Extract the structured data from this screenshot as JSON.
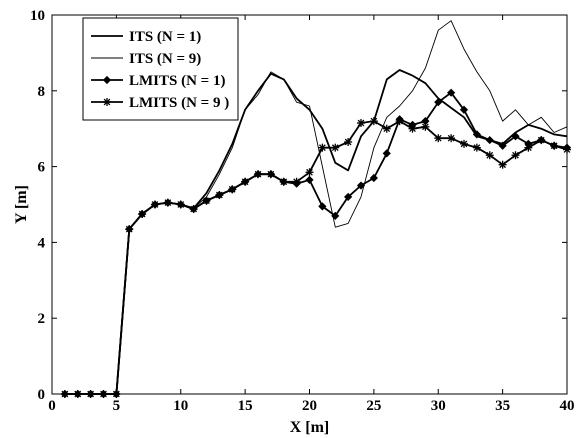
{
  "chart_data": {
    "type": "line",
    "title": "",
    "xlabel": "X [m]",
    "ylabel": "Y [m]",
    "xlim": [
      0,
      40
    ],
    "ylim": [
      0,
      10
    ],
    "xticks": [
      0,
      5,
      10,
      15,
      20,
      25,
      30,
      35,
      40
    ],
    "yticks": [
      0,
      2,
      4,
      6,
      8,
      10
    ],
    "grid": false,
    "legend_position": "top-left",
    "series": [
      {
        "name": "ITS (N = 1)",
        "style": "thick",
        "marker": "none",
        "x": [
          1,
          2,
          3,
          4,
          5,
          6,
          7,
          8,
          9,
          10,
          11,
          12,
          13,
          14,
          15,
          16,
          17,
          18,
          19,
          20,
          21,
          22,
          23,
          24,
          25,
          26,
          27,
          28,
          29,
          30,
          31,
          32,
          33,
          34,
          35,
          36,
          37,
          38,
          39,
          40
        ],
        "y": [
          0,
          0,
          0,
          0,
          0,
          4.35,
          4.75,
          5.0,
          5.05,
          5.0,
          4.9,
          5.3,
          5.9,
          6.6,
          7.5,
          8.0,
          8.45,
          8.3,
          7.8,
          7.5,
          7.0,
          6.1,
          5.9,
          6.8,
          7.2,
          8.3,
          8.55,
          8.4,
          8.2,
          7.8,
          7.55,
          7.3,
          6.8,
          6.7,
          6.6,
          6.9,
          7.1,
          7.0,
          6.85,
          6.8
        ]
      },
      {
        "name": "ITS (N = 9)",
        "style": "thin",
        "marker": "none",
        "x": [
          1,
          2,
          3,
          4,
          5,
          6,
          7,
          8,
          9,
          10,
          11,
          12,
          13,
          14,
          15,
          16,
          17,
          18,
          19,
          20,
          21,
          22,
          23,
          24,
          25,
          26,
          27,
          28,
          29,
          30,
          31,
          32,
          33,
          34,
          35,
          36,
          37,
          38,
          39,
          40
        ],
        "y": [
          0,
          0,
          0,
          0,
          0,
          4.35,
          4.75,
          5.0,
          5.05,
          5.0,
          4.9,
          5.2,
          5.8,
          6.5,
          7.5,
          7.9,
          8.5,
          8.3,
          7.7,
          7.6,
          6.0,
          4.4,
          4.5,
          5.2,
          6.5,
          7.3,
          7.6,
          8.0,
          8.6,
          9.6,
          9.85,
          9.1,
          8.5,
          8.0,
          7.2,
          7.5,
          7.1,
          7.3,
          6.9,
          7.05
        ]
      },
      {
        "name": "LMITS (N = 1)",
        "style": "thick",
        "marker": "diamond",
        "x": [
          1,
          2,
          3,
          4,
          5,
          6,
          7,
          8,
          9,
          10,
          11,
          12,
          13,
          14,
          15,
          16,
          17,
          18,
          19,
          20,
          21,
          22,
          23,
          24,
          25,
          26,
          27,
          28,
          29,
          30,
          31,
          32,
          33,
          34,
          35,
          36,
          37,
          38,
          39,
          40
        ],
        "y": [
          0,
          0,
          0,
          0,
          0,
          4.35,
          4.75,
          5.0,
          5.05,
          5.0,
          4.88,
          5.1,
          5.25,
          5.4,
          5.6,
          5.8,
          5.8,
          5.6,
          5.55,
          5.65,
          4.95,
          4.7,
          5.2,
          5.5,
          5.7,
          6.35,
          7.25,
          7.1,
          7.2,
          7.7,
          7.95,
          7.5,
          6.85,
          6.7,
          6.55,
          6.8,
          6.6,
          6.7,
          6.55,
          6.5
        ]
      },
      {
        "name": "LMITS (N = 9 )",
        "style": "thick",
        "marker": "star",
        "x": [
          1,
          2,
          3,
          4,
          5,
          6,
          7,
          8,
          9,
          10,
          11,
          12,
          13,
          14,
          15,
          16,
          17,
          18,
          19,
          20,
          21,
          22,
          23,
          24,
          25,
          26,
          27,
          28,
          29,
          30,
          31,
          32,
          33,
          34,
          35,
          36,
          37,
          38,
          39,
          40
        ],
        "y": [
          0,
          0,
          0,
          0,
          0,
          4.35,
          4.75,
          5.0,
          5.05,
          5.0,
          4.88,
          5.1,
          5.25,
          5.4,
          5.6,
          5.8,
          5.8,
          5.6,
          5.6,
          5.85,
          6.5,
          6.5,
          6.65,
          7.15,
          7.2,
          7.0,
          7.2,
          7.0,
          7.05,
          6.75,
          6.75,
          6.6,
          6.5,
          6.3,
          6.05,
          6.3,
          6.5,
          6.7,
          6.55,
          6.45
        ]
      }
    ]
  }
}
